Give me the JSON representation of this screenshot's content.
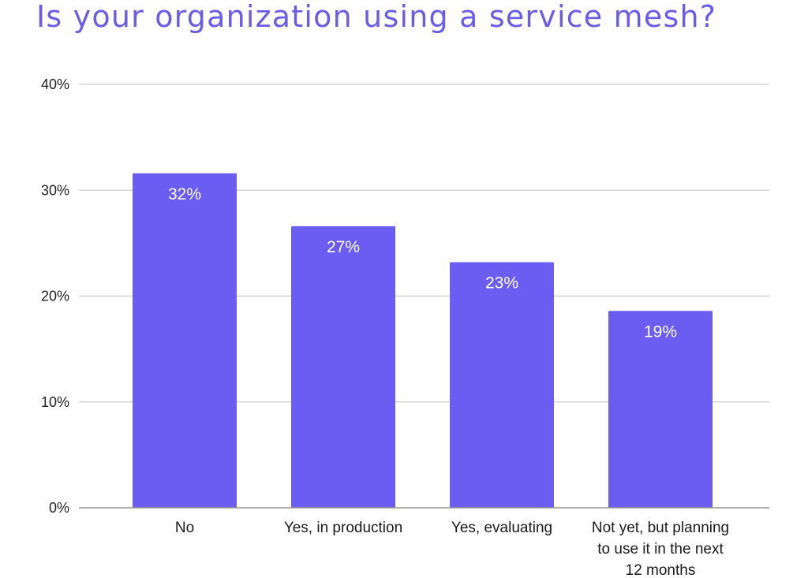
{
  "title": "Is your organization using a service mesh?",
  "colors": {
    "title": "#6b5ce7",
    "bar": "#6b5cf2",
    "gridline": "#cccccc",
    "baseline": "#999999"
  },
  "chart_data": {
    "type": "bar",
    "title": "Is your organization using a service mesh?",
    "xlabel": "",
    "ylabel": "",
    "categories": [
      "No",
      "Yes, in production",
      "Yes, evaluating",
      "Not yet, but planning to use it in the next 12 months"
    ],
    "category_label_lines": [
      [
        "No"
      ],
      [
        "Yes, in production"
      ],
      [
        "Yes, evaluating"
      ],
      [
        "Not yet, but planning",
        "to use it in the next",
        "12 months"
      ]
    ],
    "values": [
      31.6,
      26.6,
      23.2,
      18.6
    ],
    "data_labels": [
      "32%",
      "27%",
      "23%",
      "19%"
    ],
    "ylim": [
      0,
      40
    ],
    "yticks": [
      0,
      10,
      20,
      30,
      40
    ],
    "ytick_labels": [
      "0%",
      "10%",
      "20%",
      "30%",
      "40%"
    ],
    "grid": true,
    "legend": "none"
  }
}
